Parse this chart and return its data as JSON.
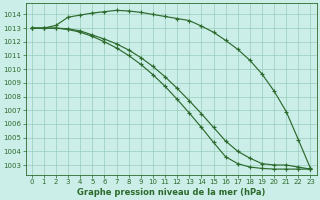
{
  "title": "Graphe pression niveau de la mer (hPa)",
  "xlim": [
    -0.5,
    23.5
  ],
  "ylim": [
    1002.3,
    1014.8
  ],
  "yticks": [
    1003,
    1004,
    1005,
    1006,
    1007,
    1008,
    1009,
    1010,
    1011,
    1012,
    1013,
    1014
  ],
  "xticks": [
    0,
    1,
    2,
    3,
    4,
    5,
    6,
    7,
    8,
    9,
    10,
    11,
    12,
    13,
    14,
    15,
    16,
    17,
    18,
    19,
    20,
    21,
    22,
    23
  ],
  "bg_color": "#cceee8",
  "grid_color": "#99ccbb",
  "line_color": "#2d6a2d",
  "line1": [
    1013.0,
    1013.0,
    1013.2,
    1013.8,
    1013.95,
    1014.1,
    1014.2,
    1014.3,
    1014.25,
    1014.15,
    1014.0,
    1013.85,
    1013.7,
    1013.55,
    1013.15,
    1012.7,
    1012.1,
    1011.45,
    1010.65,
    1009.65,
    1008.4,
    1006.9,
    1004.85,
    1002.75
  ],
  "line2": [
    1013.0,
    1013.0,
    1013.0,
    1012.95,
    1012.8,
    1012.5,
    1012.2,
    1011.85,
    1011.4,
    1010.85,
    1010.2,
    1009.45,
    1008.6,
    1007.7,
    1006.75,
    1005.75,
    1004.75,
    1004.0,
    1003.5,
    1003.1,
    1003.0,
    1003.0,
    1002.85,
    1002.7
  ],
  "line3": [
    1013.0,
    1013.0,
    1013.0,
    1012.9,
    1012.7,
    1012.4,
    1012.0,
    1011.55,
    1011.0,
    1010.35,
    1009.6,
    1008.75,
    1007.8,
    1006.8,
    1005.75,
    1004.65,
    1003.6,
    1003.1,
    1002.85,
    1002.75,
    1002.7,
    1002.7,
    1002.7,
    1002.7
  ]
}
